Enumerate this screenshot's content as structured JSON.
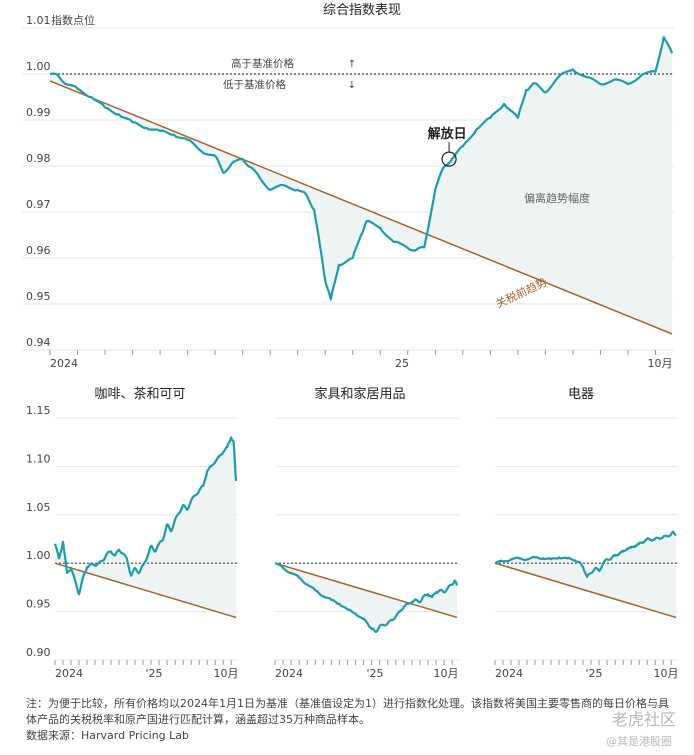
{
  "colors": {
    "line": "#1c9bad",
    "trend": "#a5622a",
    "fill": "#eef3f3",
    "grid": "#e6e6e6",
    "baseline": "#444444"
  },
  "chart_data": [
    {
      "type": "line",
      "title": "综合指数表现",
      "ylabel": "指数点位",
      "ylim": [
        0.94,
        1.01
      ],
      "yticks": [
        "0.94",
        "0.95",
        "0.96",
        "0.97",
        "0.98",
        "0.99",
        "1.00",
        "1.01"
      ],
      "xticks": [
        "2024",
        "25",
        "10月"
      ],
      "above_label": "高于基准价格",
      "below_label": "低于基准价格",
      "event_label": "解放日",
      "gap_label": "偏离趋势幅度",
      "trend_label": "关税前趋势",
      "series": [
        {
          "values": [
            [
              0,
              1.0
            ],
            [
              0.3,
              0.9996
            ],
            [
              0.6,
              0.9978
            ],
            [
              1,
              0.9968
            ],
            [
              1.5,
              0.995
            ],
            [
              2,
              0.9927
            ],
            [
              2.5,
              0.9912
            ],
            [
              3,
              0.9895
            ],
            [
              3.5,
              0.9883
            ],
            [
              4,
              0.9876
            ],
            [
              4.5,
              0.9868
            ],
            [
              5,
              0.9857
            ],
            [
              5.5,
              0.9832
            ],
            [
              6,
              0.9822
            ],
            [
              6.3,
              0.9785
            ],
            [
              6.6,
              0.9805
            ],
            [
              7,
              0.9815
            ],
            [
              7.3,
              0.9797
            ],
            [
              7.6,
              0.9776
            ],
            [
              8,
              0.9748
            ],
            [
              8.5,
              0.9758
            ],
            [
              9,
              0.9748
            ],
            [
              9.3,
              0.9738
            ],
            [
              9.6,
              0.9705
            ],
            [
              9.8,
              0.963
            ],
            [
              10,
              0.9552
            ],
            [
              10.2,
              0.951
            ],
            [
              10.5,
              0.9585
            ],
            [
              11,
              0.96
            ],
            [
              11.3,
              0.965
            ],
            [
              11.5,
              0.968
            ],
            [
              12,
              0.9665
            ],
            [
              12.5,
              0.9635
            ],
            [
              13,
              0.9622
            ],
            [
              13.3,
              0.9617
            ],
            [
              13.6,
              0.9623
            ],
            [
              14,
              0.975
            ],
            [
              14.3,
              0.9797
            ],
            [
              14.6,
              0.9815
            ],
            [
              15,
              0.9843
            ],
            [
              15.5,
              0.988
            ],
            [
              16,
              0.9905
            ],
            [
              16.5,
              0.9935
            ],
            [
              17,
              0.9905
            ],
            [
              17.3,
              0.9965
            ],
            [
              17.6,
              0.998
            ],
            [
              18,
              0.996
            ],
            [
              18.5,
              0.9995
            ],
            [
              19,
              1.001
            ],
            [
              19.5,
              0.9993
            ],
            [
              20,
              0.9978
            ],
            [
              20.5,
              0.9988
            ],
            [
              21,
              0.9978
            ],
            [
              21.5,
              0.9998
            ],
            [
              22,
              1.0005
            ],
            [
              22.3,
              1.008
            ],
            [
              22.6,
              1.0045
            ]
          ]
        },
        {
          "values": [
            [
              0,
              0.9985
            ],
            [
              22.6,
              0.9435
            ]
          ]
        }
      ],
      "xlim": [
        0,
        22.6
      ],
      "event_x": 14.5
    },
    {
      "type": "line",
      "title": "咖啡、茶和可可",
      "ylim": [
        0.9,
        1.15
      ],
      "yticks": [
        "0.90",
        "0.95",
        "1.00",
        "1.05",
        "1.10",
        "1.15"
      ],
      "xticks": [
        "2024",
        "'25",
        "10月"
      ],
      "xlim": [
        0,
        22.6
      ],
      "series": [
        {
          "values": [
            [
              0,
              1.02
            ],
            [
              0.5,
              1.005
            ],
            [
              1,
              1.022
            ],
            [
              1.5,
              0.99
            ],
            [
              2,
              0.995
            ],
            [
              2.5,
              0.982
            ],
            [
              3,
              0.968
            ],
            [
              3.5,
              0.985
            ],
            [
              4,
              0.996
            ],
            [
              4.5,
              0.999
            ],
            [
              5,
              0.998
            ],
            [
              5.5,
              1.0
            ],
            [
              6,
              1.003
            ],
            [
              6.5,
              1.01
            ],
            [
              7,
              1.012
            ],
            [
              7.5,
              1.008
            ],
            [
              8,
              1.014
            ],
            [
              8.5,
              1.01
            ],
            [
              9,
              1.004
            ],
            [
              9.5,
              0.987
            ],
            [
              10,
              0.995
            ],
            [
              10.5,
              0.99
            ],
            [
              11,
              0.998
            ],
            [
              11.5,
              1.006
            ],
            [
              12,
              1.018
            ],
            [
              12.5,
              1.012
            ],
            [
              13,
              1.02
            ],
            [
              13.5,
              1.025
            ],
            [
              14,
              1.04
            ],
            [
              14.5,
              1.033
            ],
            [
              15,
              1.045
            ],
            [
              15.5,
              1.052
            ],
            [
              16,
              1.06
            ],
            [
              16.5,
              1.055
            ],
            [
              17,
              1.065
            ],
            [
              17.5,
              1.07
            ],
            [
              18,
              1.075
            ],
            [
              18.5,
              1.08
            ],
            [
              19,
              1.095
            ],
            [
              19.5,
              1.1
            ],
            [
              20,
              1.105
            ],
            [
              20.5,
              1.11
            ],
            [
              21,
              1.115
            ],
            [
              21.5,
              1.12
            ],
            [
              22,
              1.13
            ],
            [
              22.3,
              1.125
            ],
            [
              22.6,
              1.085
            ]
          ]
        },
        {
          "values": [
            [
              0,
              1.0
            ],
            [
              22.6,
              0.944
            ]
          ]
        }
      ]
    },
    {
      "type": "line",
      "title": "家具和家居用品",
      "ylim": [
        0.9,
        1.15
      ],
      "xticks": [
        "2024",
        "'25",
        "10月"
      ],
      "xlim": [
        0,
        22.6
      ],
      "series": [
        {
          "values": [
            [
              0,
              1.0
            ],
            [
              1,
              0.995
            ],
            [
              2,
              0.99
            ],
            [
              3,
              0.985
            ],
            [
              4,
              0.978
            ],
            [
              5,
              0.972
            ],
            [
              6,
              0.966
            ],
            [
              7,
              0.962
            ],
            [
              8,
              0.958
            ],
            [
              9,
              0.952
            ],
            [
              10,
              0.948
            ],
            [
              11,
              0.942
            ],
            [
              11.5,
              0.938
            ],
            [
              12,
              0.932
            ],
            [
              12.5,
              0.929
            ],
            [
              13,
              0.935
            ],
            [
              13.5,
              0.936
            ],
            [
              14,
              0.938
            ],
            [
              14.5,
              0.941
            ],
            [
              15,
              0.945
            ],
            [
              15.5,
              0.95
            ],
            [
              16,
              0.955
            ],
            [
              16.5,
              0.958
            ],
            [
              17,
              0.96
            ],
            [
              17.5,
              0.962
            ],
            [
              18,
              0.96
            ],
            [
              18.5,
              0.966
            ],
            [
              19,
              0.968
            ],
            [
              19.5,
              0.965
            ],
            [
              20,
              0.97
            ],
            [
              20.5,
              0.972
            ],
            [
              21,
              0.97
            ],
            [
              21.5,
              0.975
            ],
            [
              22,
              0.978
            ],
            [
              22.3,
              0.982
            ],
            [
              22.6,
              0.977
            ]
          ]
        },
        {
          "values": [
            [
              0,
              1.0
            ],
            [
              22.6,
              0.944
            ]
          ]
        }
      ]
    },
    {
      "type": "line",
      "title": "电器",
      "ylim": [
        0.9,
        1.15
      ],
      "xticks": [
        "2024",
        "'25",
        "10月"
      ],
      "xlim": [
        0,
        22.6
      ],
      "series": [
        {
          "values": [
            [
              0,
              1.0
            ],
            [
              1,
              1.002
            ],
            [
              2,
              1.004
            ],
            [
              3,
              1.005
            ],
            [
              4,
              1.004
            ],
            [
              5,
              1.006
            ],
            [
              6,
              1.005
            ],
            [
              7,
              1.004
            ],
            [
              8,
              1.006
            ],
            [
              9,
              1.005
            ],
            [
              10,
              1.003
            ],
            [
              10.5,
              1.001
            ],
            [
              11,
              0.996
            ],
            [
              11.5,
              0.986
            ],
            [
              12,
              0.99
            ],
            [
              12.5,
              0.995
            ],
            [
              13,
              0.992
            ],
            [
              13.5,
              1.0
            ],
            [
              14,
              1.004
            ],
            [
              14.5,
              1.005
            ],
            [
              15,
              1.008
            ],
            [
              15.5,
              1.01
            ],
            [
              16,
              1.012
            ],
            [
              16.5,
              1.015
            ],
            [
              17,
              1.016
            ],
            [
              17.5,
              1.018
            ],
            [
              18,
              1.02
            ],
            [
              18.5,
              1.022
            ],
            [
              19,
              1.025
            ],
            [
              19.5,
              1.024
            ],
            [
              20,
              1.025
            ],
            [
              20.5,
              1.026
            ],
            [
              21,
              1.027
            ],
            [
              21.5,
              1.028
            ],
            [
              22,
              1.03
            ],
            [
              22.3,
              1.032
            ],
            [
              22.6,
              1.03
            ]
          ]
        },
        {
          "values": [
            [
              0,
              1.0
            ],
            [
              22.6,
              0.944
            ]
          ]
        }
      ]
    }
  ],
  "footnote": {
    "line1": "注：为便于比较，所有价格均以2024年1月1日为基准（基准值设定为1）进行指数化处理。该指数将美国主要零售商的每日价格与具体产品的关税税率和原产国进行匹配计算，涵盖超过35万种商品样本。",
    "line2": "数据来源：Harvard Pricing Lab"
  },
  "watermark": {
    "main": "老虎社区",
    "sub": "@其是港股圈"
  }
}
